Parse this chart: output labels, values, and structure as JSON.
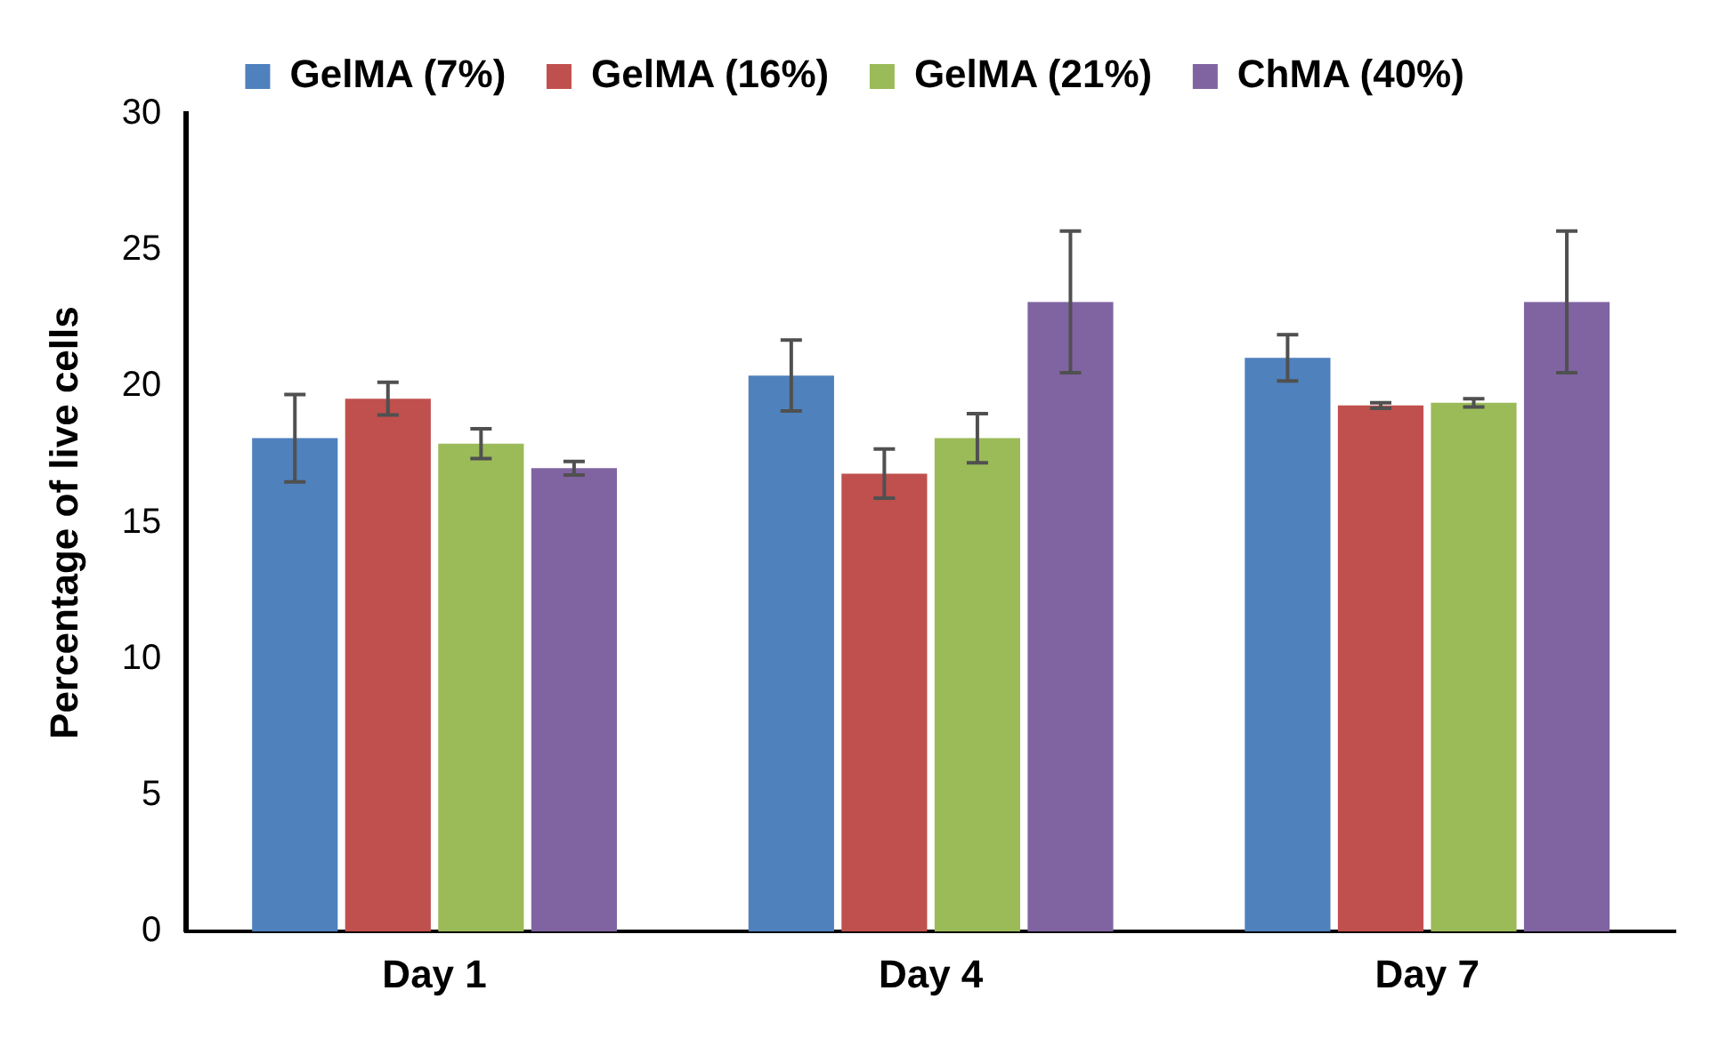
{
  "chart_data": {
    "type": "bar",
    "ylabel": "Percentage of live cells",
    "categories": [
      "Day 1",
      "Day 4",
      "Day 7"
    ],
    "series": [
      {
        "name": "GelMA (7%)",
        "color": "#4f81bd",
        "values": [
          18.1,
          20.4,
          21.05
        ],
        "errors": [
          1.6,
          1.3,
          0.85
        ]
      },
      {
        "name": "GelMA (16%)",
        "color": "#c0504d",
        "values": [
          19.55,
          16.8,
          19.3
        ],
        "errors": [
          0.6,
          0.9,
          0.1
        ]
      },
      {
        "name": "GelMA (21%)",
        "color": "#9bbb59",
        "values": [
          17.9,
          18.1,
          19.4
        ],
        "errors": [
          0.55,
          0.9,
          0.15
        ]
      },
      {
        "name": "ChMA (40%)",
        "color": "#8064a2",
        "values": [
          17.0,
          23.1,
          23.1
        ],
        "errors": [
          0.25,
          2.6,
          2.6
        ]
      }
    ],
    "ylim": [
      0,
      30
    ],
    "yticks": [
      0,
      5,
      10,
      15,
      20,
      25,
      30
    ],
    "grid": false,
    "legend": "top"
  }
}
